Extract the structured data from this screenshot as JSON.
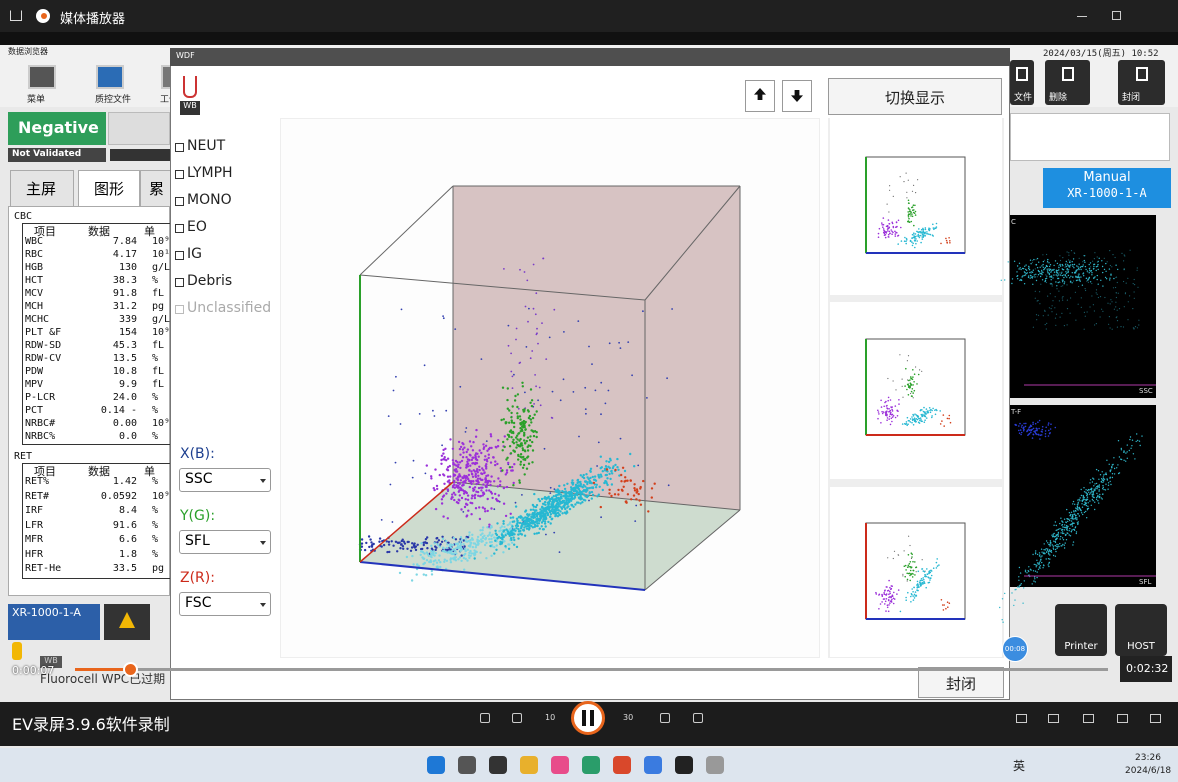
{
  "window": {
    "title": "媒体播放器"
  },
  "app": {
    "title": "数据浏览器",
    "datetime": "2024/03/15(周五) 10:52",
    "toolbar": [
      "菜单",
      "质控文件",
      "工作"
    ],
    "right_buttons": [
      "文件",
      "删除",
      "封闭"
    ],
    "status": "Negative",
    "validation": "Not Validated",
    "tabs": [
      "主屏",
      "图形",
      "累"
    ],
    "sample_id": "XR-1000-1-A",
    "mode": "Manual",
    "mode_sample": "XR-1000-1-A",
    "scatter_labels": [
      "C",
      "SSC",
      "T-F",
      "SFL"
    ],
    "buttons": [
      "Printer",
      "HOST"
    ],
    "tube": "WB",
    "warning": "Fluorocell WPC已过期"
  },
  "cbc": {
    "title": "CBC",
    "columns": [
      "项目",
      "数据",
      "单"
    ],
    "rows": [
      [
        "WBC",
        "7.84",
        "10⁹"
      ],
      [
        "RBC",
        "4.17",
        "10¹"
      ],
      [
        "HGB",
        "130",
        "g/L"
      ],
      [
        "HCT",
        "38.3",
        "%"
      ],
      [
        "MCV",
        "91.8",
        "fL"
      ],
      [
        "MCH",
        "31.2",
        "pg"
      ],
      [
        "MCHC",
        "339",
        "g/L"
      ],
      [
        "PLT &F",
        "154",
        "10⁹"
      ],
      [
        "RDW-SD",
        "45.3",
        "fL"
      ],
      [
        "RDW-CV",
        "13.5",
        "%"
      ],
      [
        "PDW",
        "10.8",
        "fL"
      ],
      [
        "MPV",
        "9.9",
        "fL"
      ],
      [
        "P-LCR",
        "24.0",
        "%"
      ],
      [
        "PCT",
        "0.14 -",
        "%"
      ],
      [
        "NRBC#",
        "0.00",
        "10⁹"
      ],
      [
        "NRBC%",
        "0.0",
        "%"
      ]
    ]
  },
  "ret": {
    "title": "RET",
    "columns": [
      "项目",
      "数据",
      "单"
    ],
    "rows": [
      [
        "RET%",
        "1.42",
        "%"
      ],
      [
        "RET#",
        "0.0592",
        "10⁹"
      ],
      [
        "IRF",
        "8.4",
        "%"
      ],
      [
        "LFR",
        "91.6",
        "%"
      ],
      [
        "MFR",
        "6.6",
        "%"
      ],
      [
        "HFR",
        "1.8",
        "%"
      ],
      [
        "RET-He",
        "33.5",
        "pg"
      ]
    ]
  },
  "dialog": {
    "title": "WDF",
    "badge": "WB",
    "checkboxes": [
      "NEUT",
      "LYMPH",
      "MONO",
      "EO",
      "IG",
      "Debris",
      "Unclassified"
    ],
    "axes": [
      {
        "label": "X(B):",
        "value": "SSC"
      },
      {
        "label": "Y(G):",
        "value": "SFL"
      },
      {
        "label": "Z(R):",
        "value": "FSC"
      }
    ],
    "switch": "切换显示",
    "close": "封闭"
  },
  "player": {
    "elapsed": "0:00:07",
    "total": "0:02:32",
    "bubble": "00:08",
    "caption": "EV录屏3.9.6软件录制",
    "skip_back": "10",
    "skip_forward": "30"
  },
  "taskbar": {
    "ime": "英",
    "time": "23:26",
    "date": "2024/6/18"
  }
}
